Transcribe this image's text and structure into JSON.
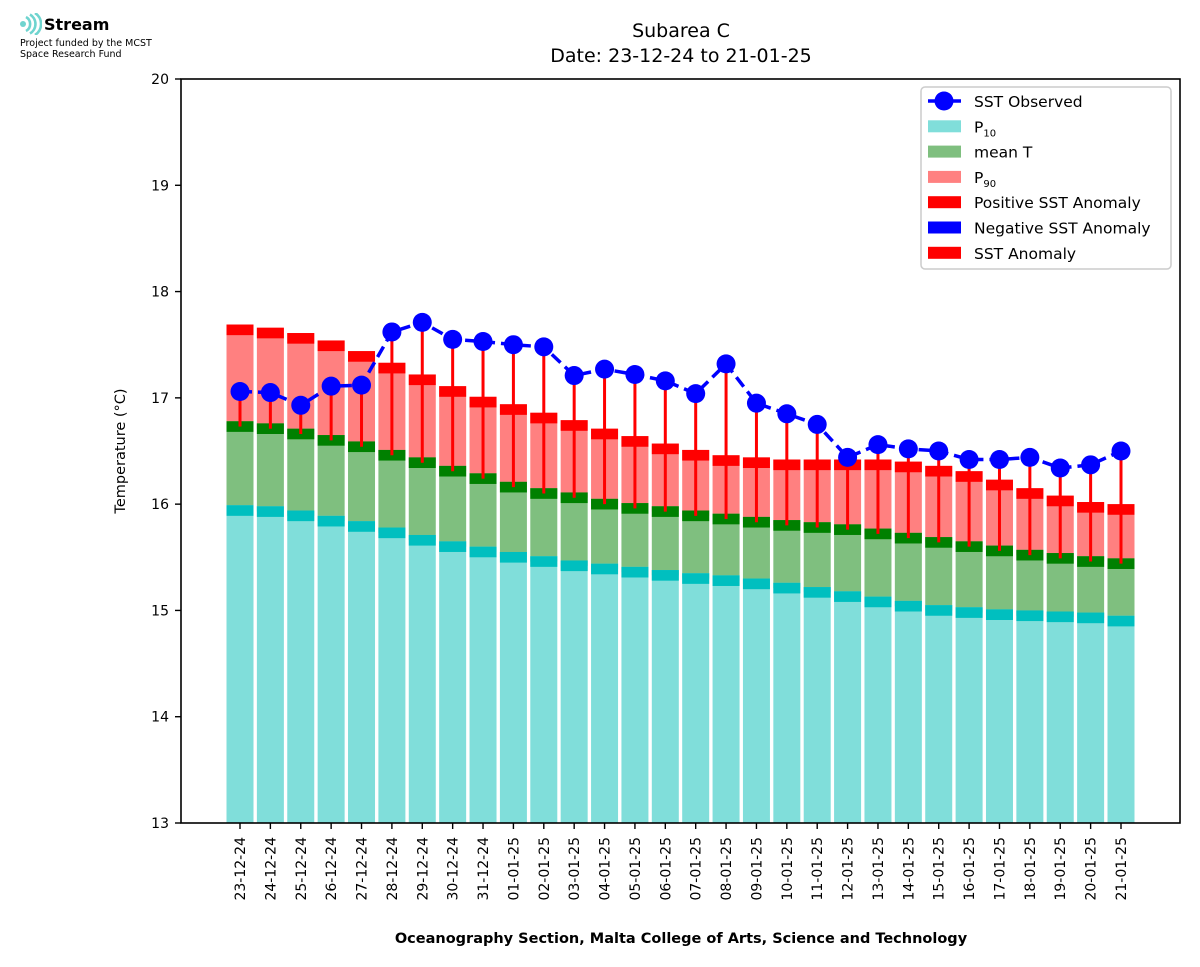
{
  "logo": {
    "icon": "stream-waves-icon",
    "brand": "Stream",
    "funded_line1": "Project funded by the MCST",
    "funded_line2": "Space Research Fund"
  },
  "colors": {
    "p10": "#80deda",
    "p10_band": "#00bfbf",
    "mean": "#7fbf7f",
    "mean_band": "#008000",
    "p90": "#ff8080",
    "p90_band": "#ff0000",
    "anomaly_positive": "#ff0000",
    "anomaly_negative": "#0000ff",
    "sst": "#0000ff"
  },
  "chart_data": {
    "type": "bar",
    "title_line1": "Subarea C",
    "title_line2": "Date: 23-12-24 to 21-01-25",
    "xlabel": "Oceanography Section, Malta College of Arts, Science and Technology",
    "ylabel": "Temperature (°C)",
    "ylim": [
      13,
      20
    ],
    "yticks": [
      13,
      14,
      15,
      16,
      17,
      18,
      19,
      20
    ],
    "grid": false,
    "legend_position": "top-right",
    "legend": [
      {
        "label": "SST Observed",
        "sub": "",
        "kind": "line-marker",
        "color": "#0000ff"
      },
      {
        "label": "P",
        "sub": "10",
        "kind": "patch",
        "color": "#80deda"
      },
      {
        "label": "mean T",
        "sub": "",
        "kind": "patch",
        "color": "#7fbf7f"
      },
      {
        "label": "P",
        "sub": "90",
        "kind": "patch",
        "color": "#ff8080"
      },
      {
        "label": "Positive SST Anomaly",
        "sub": "",
        "kind": "patch",
        "color": "#ff0000"
      },
      {
        "label": "Negative SST Anomaly",
        "sub": "",
        "kind": "patch",
        "color": "#0000ff"
      },
      {
        "label": "SST Anomaly",
        "sub": "",
        "kind": "patch",
        "color": "#ff0000"
      }
    ],
    "categories": [
      "23-12-24",
      "24-12-24",
      "25-12-24",
      "26-12-24",
      "27-12-24",
      "28-12-24",
      "29-12-24",
      "30-12-24",
      "31-12-24",
      "01-01-25",
      "02-01-25",
      "03-01-25",
      "04-01-25",
      "05-01-25",
      "06-01-25",
      "07-01-25",
      "08-01-25",
      "09-01-25",
      "10-01-25",
      "11-01-25",
      "12-01-25",
      "13-01-25",
      "14-01-25",
      "15-01-25",
      "16-01-25",
      "17-01-25",
      "18-01-25",
      "19-01-25",
      "20-01-25",
      "21-01-25"
    ],
    "series": [
      {
        "name": "P10",
        "values": [
          15.94,
          15.93,
          15.89,
          15.84,
          15.79,
          15.73,
          15.66,
          15.6,
          15.55,
          15.5,
          15.46,
          15.42,
          15.39,
          15.36,
          15.33,
          15.3,
          15.28,
          15.25,
          15.21,
          15.17,
          15.13,
          15.08,
          15.04,
          15.0,
          14.98,
          14.96,
          14.95,
          14.94,
          14.93,
          14.9
        ]
      },
      {
        "name": "mean T",
        "values": [
          16.73,
          16.71,
          16.66,
          16.6,
          16.54,
          16.46,
          16.39,
          16.31,
          16.24,
          16.16,
          16.1,
          16.06,
          16.0,
          15.96,
          15.93,
          15.89,
          15.86,
          15.83,
          15.8,
          15.78,
          15.76,
          15.72,
          15.68,
          15.64,
          15.6,
          15.56,
          15.52,
          15.49,
          15.46,
          15.44
        ]
      },
      {
        "name": "P90",
        "values": [
          17.64,
          17.61,
          17.56,
          17.49,
          17.39,
          17.28,
          17.17,
          17.06,
          16.96,
          16.89,
          16.81,
          16.74,
          16.66,
          16.59,
          16.52,
          16.46,
          16.41,
          16.39,
          16.37,
          16.37,
          16.37,
          16.37,
          16.35,
          16.31,
          16.26,
          16.18,
          16.1,
          16.03,
          15.97,
          15.95
        ]
      },
      {
        "name": "SST Observed",
        "values": [
          17.06,
          17.05,
          16.93,
          17.11,
          17.12,
          17.62,
          17.71,
          17.55,
          17.53,
          17.5,
          17.48,
          17.21,
          17.27,
          17.22,
          17.16,
          17.04,
          17.32,
          16.95,
          16.85,
          16.75,
          16.44,
          16.56,
          16.52,
          16.5,
          16.42,
          16.42,
          16.44,
          16.34,
          16.37,
          16.5
        ]
      }
    ]
  }
}
